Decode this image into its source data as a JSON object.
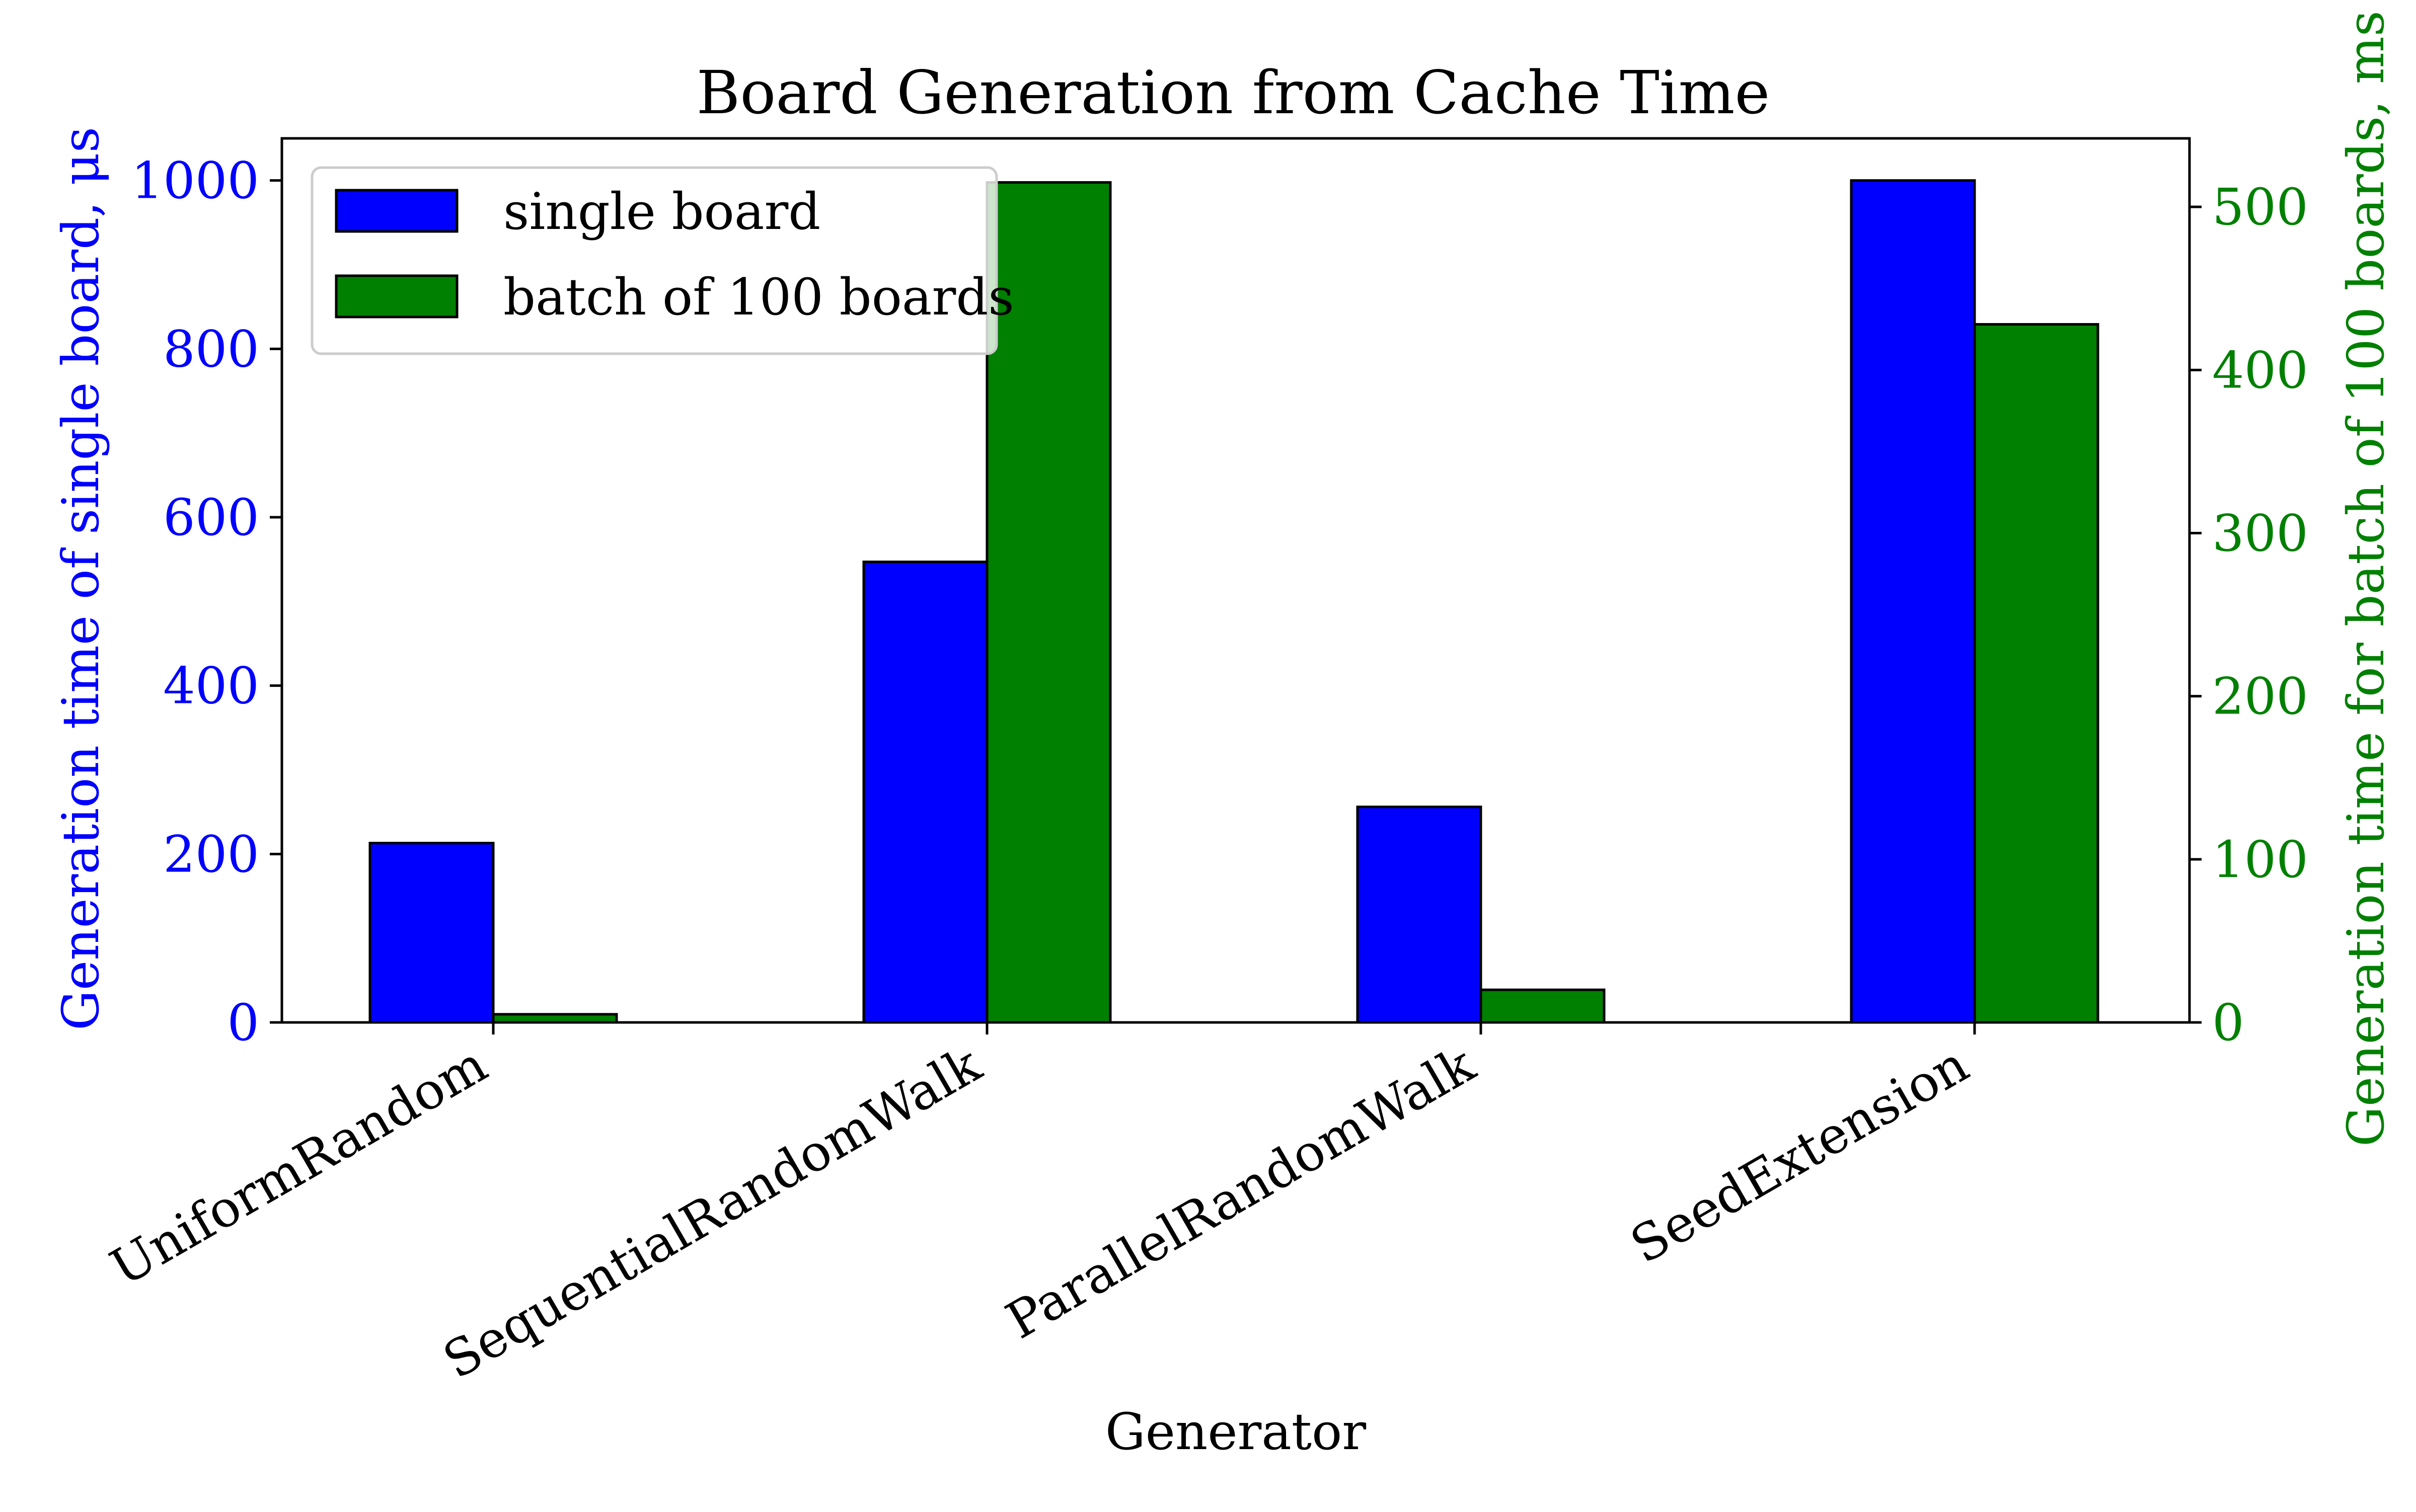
{
  "chart_data": {
    "type": "bar",
    "title": "Board Generation from Cache Time",
    "xlabel": "Generator",
    "ylabel_left": "Generation time of single board, μs",
    "ylabel_right": "Generation time for batch of 100 boards, ms",
    "categories": [
      "UniformRandom",
      "SequentialRandomWalk",
      "ParallelRandomWalk",
      "SeedExtension"
    ],
    "series": [
      {
        "name": "single board",
        "axis": "left",
        "color": "#0000ff",
        "values": [
          213,
          547,
          256,
          1000
        ]
      },
      {
        "name": "batch of 100 boards",
        "axis": "right",
        "color": "#008000",
        "values": [
          5,
          515,
          20,
          428
        ]
      }
    ],
    "ylim_left": [
      0,
      1050
    ],
    "ylim_right": [
      0,
      542
    ],
    "yticks_left": [
      0,
      200,
      400,
      600,
      800,
      1000
    ],
    "yticks_right": [
      0,
      100,
      200,
      300,
      400,
      500
    ],
    "grid": false,
    "legend_position": "upper-left"
  }
}
